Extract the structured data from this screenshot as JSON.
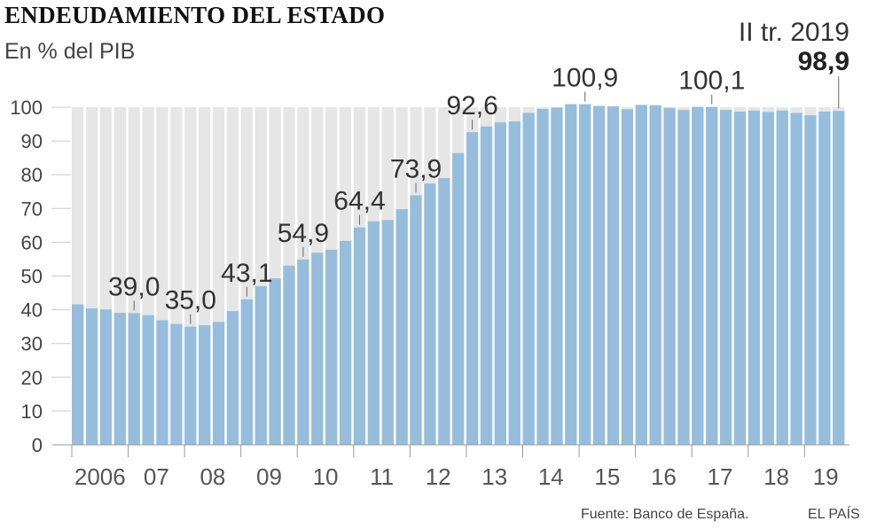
{
  "header": {
    "title": "ENDEUDAMIENTO DEL ESTADO",
    "subtitle": "En % del PIB",
    "latest_period": "II tr. 2019",
    "latest_value": "98,9"
  },
  "footer": {
    "source": "Fuente: Banco de España.",
    "brand": "EL PAÍS"
  },
  "colors": {
    "bar": "#96bddc",
    "background_bar": "#e6e6e6",
    "axis": "#999999"
  },
  "chart_data": {
    "type": "bar",
    "title": "ENDEUDAMIENTO DEL ESTADO",
    "subtitle": "En % del PIB",
    "ylim": [
      0,
      100
    ],
    "y_ticks": [
      0,
      10,
      20,
      30,
      40,
      50,
      60,
      70,
      80,
      90,
      100
    ],
    "y_tick_labels": [
      "0",
      "10",
      "20",
      "30",
      "40",
      "50",
      "60",
      "70",
      "80",
      "90",
      "100"
    ],
    "x_tick_labels": [
      "2006",
      "07",
      "08",
      "09",
      "10",
      "11",
      "12",
      "13",
      "14",
      "15",
      "16",
      "17",
      "18",
      "19"
    ],
    "grid": false,
    "values": [
      41.6,
      40.4,
      40.1,
      39.1,
      39.0,
      38.4,
      36.9,
      35.8,
      35.0,
      35.4,
      36.4,
      39.6,
      43.1,
      47.0,
      49.3,
      53.1,
      54.9,
      56.9,
      57.8,
      60.4,
      64.4,
      66.2,
      66.6,
      69.8,
      73.9,
      77.4,
      79.0,
      86.4,
      92.6,
      94.3,
      95.5,
      95.8,
      98.3,
      99.5,
      99.9,
      100.9,
      100.9,
      100.4,
      100.3,
      99.4,
      100.7,
      100.6,
      99.8,
      99.2,
      100.1,
      100.1,
      99.2,
      98.7,
      99.0,
      98.6,
      99.0,
      98.3,
      97.6,
      98.7,
      98.9
    ],
    "annotations": [
      {
        "index": 4,
        "label": "39,0"
      },
      {
        "index": 8,
        "label": "35,0"
      },
      {
        "index": 12,
        "label": "43,1"
      },
      {
        "index": 16,
        "label": "54,9"
      },
      {
        "index": 20,
        "label": "64,4"
      },
      {
        "index": 24,
        "label": "73,9"
      },
      {
        "index": 28,
        "label": "92,6"
      },
      {
        "index": 36,
        "label": "100,9"
      },
      {
        "index": 45,
        "label": "100,1"
      }
    ]
  }
}
